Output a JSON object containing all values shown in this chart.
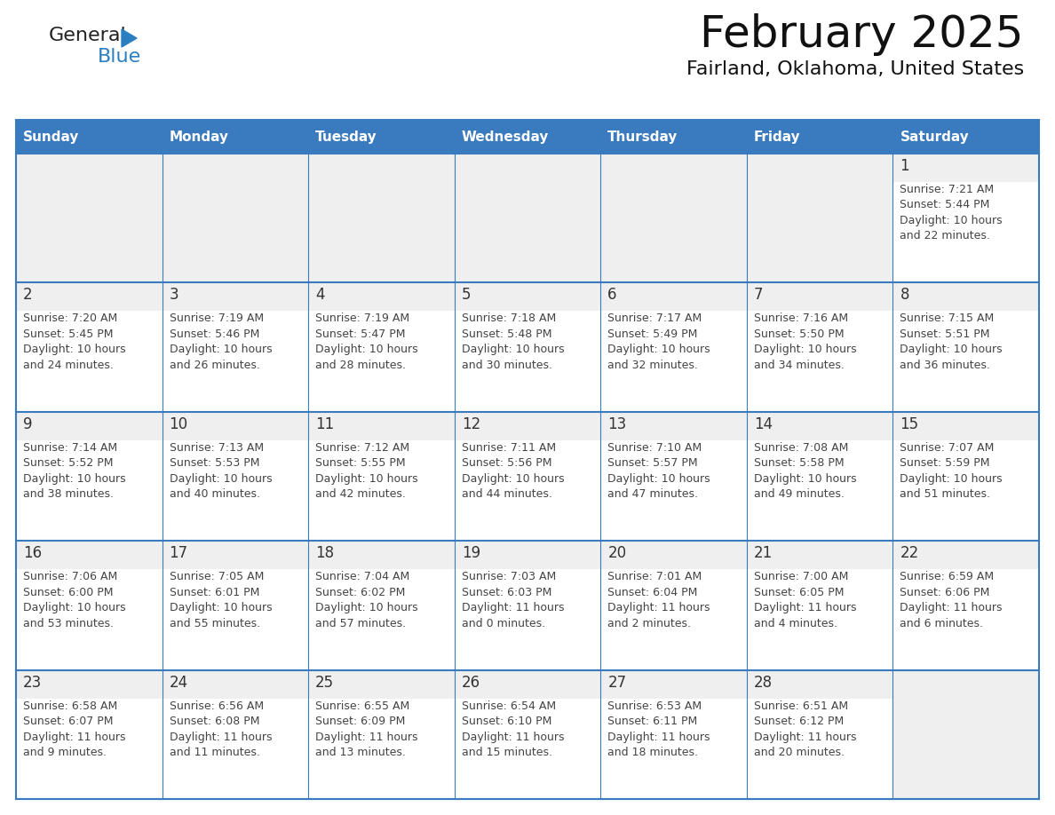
{
  "title": "February 2025",
  "subtitle": "Fairland, Oklahoma, United States",
  "header_color": "#3a7abf",
  "header_text_color": "#ffffff",
  "cell_bg_color": "#efefef",
  "cell_border_color": "#3a7abf",
  "day_number_color": "#333333",
  "text_color": "#444444",
  "background_color": "#ffffff",
  "days_of_week": [
    "Sunday",
    "Monday",
    "Tuesday",
    "Wednesday",
    "Thursday",
    "Friday",
    "Saturday"
  ],
  "weeks": [
    [
      {
        "day": null,
        "info": null
      },
      {
        "day": null,
        "info": null
      },
      {
        "day": null,
        "info": null
      },
      {
        "day": null,
        "info": null
      },
      {
        "day": null,
        "info": null
      },
      {
        "day": null,
        "info": null
      },
      {
        "day": 1,
        "info": "Sunrise: 7:21 AM\nSunset: 5:44 PM\nDaylight: 10 hours\nand 22 minutes."
      }
    ],
    [
      {
        "day": 2,
        "info": "Sunrise: 7:20 AM\nSunset: 5:45 PM\nDaylight: 10 hours\nand 24 minutes."
      },
      {
        "day": 3,
        "info": "Sunrise: 7:19 AM\nSunset: 5:46 PM\nDaylight: 10 hours\nand 26 minutes."
      },
      {
        "day": 4,
        "info": "Sunrise: 7:19 AM\nSunset: 5:47 PM\nDaylight: 10 hours\nand 28 minutes."
      },
      {
        "day": 5,
        "info": "Sunrise: 7:18 AM\nSunset: 5:48 PM\nDaylight: 10 hours\nand 30 minutes."
      },
      {
        "day": 6,
        "info": "Sunrise: 7:17 AM\nSunset: 5:49 PM\nDaylight: 10 hours\nand 32 minutes."
      },
      {
        "day": 7,
        "info": "Sunrise: 7:16 AM\nSunset: 5:50 PM\nDaylight: 10 hours\nand 34 minutes."
      },
      {
        "day": 8,
        "info": "Sunrise: 7:15 AM\nSunset: 5:51 PM\nDaylight: 10 hours\nand 36 minutes."
      }
    ],
    [
      {
        "day": 9,
        "info": "Sunrise: 7:14 AM\nSunset: 5:52 PM\nDaylight: 10 hours\nand 38 minutes."
      },
      {
        "day": 10,
        "info": "Sunrise: 7:13 AM\nSunset: 5:53 PM\nDaylight: 10 hours\nand 40 minutes."
      },
      {
        "day": 11,
        "info": "Sunrise: 7:12 AM\nSunset: 5:55 PM\nDaylight: 10 hours\nand 42 minutes."
      },
      {
        "day": 12,
        "info": "Sunrise: 7:11 AM\nSunset: 5:56 PM\nDaylight: 10 hours\nand 44 minutes."
      },
      {
        "day": 13,
        "info": "Sunrise: 7:10 AM\nSunset: 5:57 PM\nDaylight: 10 hours\nand 47 minutes."
      },
      {
        "day": 14,
        "info": "Sunrise: 7:08 AM\nSunset: 5:58 PM\nDaylight: 10 hours\nand 49 minutes."
      },
      {
        "day": 15,
        "info": "Sunrise: 7:07 AM\nSunset: 5:59 PM\nDaylight: 10 hours\nand 51 minutes."
      }
    ],
    [
      {
        "day": 16,
        "info": "Sunrise: 7:06 AM\nSunset: 6:00 PM\nDaylight: 10 hours\nand 53 minutes."
      },
      {
        "day": 17,
        "info": "Sunrise: 7:05 AM\nSunset: 6:01 PM\nDaylight: 10 hours\nand 55 minutes."
      },
      {
        "day": 18,
        "info": "Sunrise: 7:04 AM\nSunset: 6:02 PM\nDaylight: 10 hours\nand 57 minutes."
      },
      {
        "day": 19,
        "info": "Sunrise: 7:03 AM\nSunset: 6:03 PM\nDaylight: 11 hours\nand 0 minutes."
      },
      {
        "day": 20,
        "info": "Sunrise: 7:01 AM\nSunset: 6:04 PM\nDaylight: 11 hours\nand 2 minutes."
      },
      {
        "day": 21,
        "info": "Sunrise: 7:00 AM\nSunset: 6:05 PM\nDaylight: 11 hours\nand 4 minutes."
      },
      {
        "day": 22,
        "info": "Sunrise: 6:59 AM\nSunset: 6:06 PM\nDaylight: 11 hours\nand 6 minutes."
      }
    ],
    [
      {
        "day": 23,
        "info": "Sunrise: 6:58 AM\nSunset: 6:07 PM\nDaylight: 11 hours\nand 9 minutes."
      },
      {
        "day": 24,
        "info": "Sunrise: 6:56 AM\nSunset: 6:08 PM\nDaylight: 11 hours\nand 11 minutes."
      },
      {
        "day": 25,
        "info": "Sunrise: 6:55 AM\nSunset: 6:09 PM\nDaylight: 11 hours\nand 13 minutes."
      },
      {
        "day": 26,
        "info": "Sunrise: 6:54 AM\nSunset: 6:10 PM\nDaylight: 11 hours\nand 15 minutes."
      },
      {
        "day": 27,
        "info": "Sunrise: 6:53 AM\nSunset: 6:11 PM\nDaylight: 11 hours\nand 18 minutes."
      },
      {
        "day": 28,
        "info": "Sunrise: 6:51 AM\nSunset: 6:12 PM\nDaylight: 11 hours\nand 20 minutes."
      },
      {
        "day": null,
        "info": null
      }
    ]
  ],
  "logo_color_general": "#222222",
  "logo_color_blue": "#2b7fc1",
  "logo_triangle_color": "#2b7fc1",
  "title_fontsize": 36,
  "subtitle_fontsize": 16,
  "header_fontsize": 11,
  "day_num_fontsize": 12,
  "info_fontsize": 9,
  "logo_fontsize": 16
}
